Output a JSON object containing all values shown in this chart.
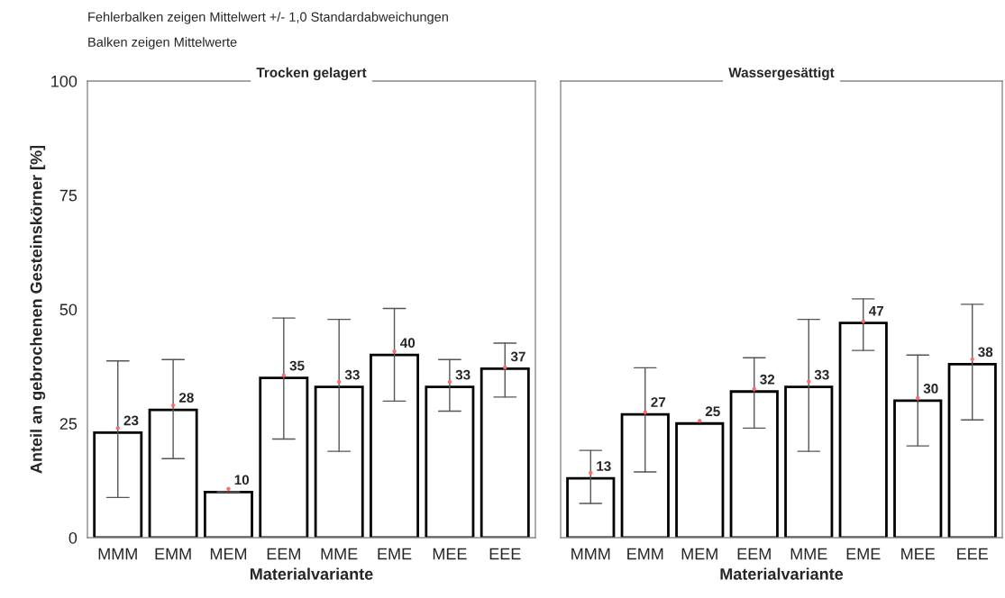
{
  "chart_data": [
    {
      "type": "bar",
      "title": "Trocken gelagert",
      "xlabel": "Materialvariante",
      "ylabel": "Anteil an gebrochenen Gesteinskörner [%]",
      "annotations": [
        "Fehlerbalken zeigen Mittelwert +/- 1,0 Standardabweichungen",
        "Balken zeigen Mittelwerte"
      ],
      "categories": [
        "MMM",
        "EMM",
        "MEM",
        "EEM",
        "MME",
        "EME",
        "MEE",
        "EEE"
      ],
      "series": [
        {
          "color": "#ffffff",
          "values": [
            23,
            28,
            10,
            35,
            33,
            40,
            33,
            37
          ],
          "value_labels": [
            "23",
            "28",
            "10",
            "35",
            "33",
            "40",
            "33",
            "37"
          ],
          "errors": [
            [
              8.8,
              38.7
            ],
            [
              17.3,
              39.0
            ],
            [
              10.0,
              10.0
            ],
            [
              21.6,
              48.1
            ],
            [
              18.9,
              47.8
            ],
            [
              29.9,
              50.2
            ],
            [
              27.7,
              39.0
            ],
            [
              30.8,
              42.6
            ]
          ]
        },
        {
          "type": "scatter",
          "color": "#ff6b6b",
          "x": [
            "MMM",
            "EMM",
            "MEM",
            "EEM",
            "MME",
            "EME",
            "MEE",
            "EEE"
          ],
          "values": [
            24.0,
            29.0,
            10.7,
            35.6,
            34.1,
            40.8,
            34.1,
            37.3
          ]
        }
      ],
      "ylim": [
        0,
        100
      ],
      "yticks": [
        0,
        25,
        50,
        75,
        100
      ],
      "grid": false,
      "legend": false
    },
    {
      "type": "bar",
      "title": "Wassergesättigt",
      "xlabel": "Materialvariante",
      "categories": [
        "MMM",
        "EMM",
        "MEM",
        "EEM",
        "MME",
        "EME",
        "MEE",
        "EEE"
      ],
      "series": [
        {
          "color": "#ffffff",
          "values": [
            13,
            27,
            25,
            32,
            33,
            47,
            30,
            38
          ],
          "value_labels": [
            "13",
            "27",
            "25",
            "32",
            "33",
            "47",
            "30",
            "38"
          ],
          "errors": [
            [
              7.5,
              19.1
            ],
            [
              14.4,
              37.2
            ],
            null,
            [
              24.0,
              39.4
            ],
            [
              18.9,
              47.8
            ],
            [
              41.0,
              52.3
            ],
            [
              20.1,
              40.0
            ],
            [
              25.8,
              51.1
            ]
          ]
        },
        {
          "type": "scatter",
          "color": "#ff6b6b",
          "x": [
            "MMM",
            "EMM",
            "MEM",
            "EEM",
            "MME",
            "EME",
            "MEE",
            "EEE"
          ],
          "values": [
            14.2,
            27.5,
            25.6,
            32.6,
            34.2,
            47.4,
            30.6,
            39.1
          ]
        }
      ],
      "ylim": [
        0,
        100
      ],
      "yticks": [
        0,
        25,
        50,
        75,
        100
      ],
      "tick_labels": "x",
      "grid": false,
      "legend": false
    }
  ]
}
